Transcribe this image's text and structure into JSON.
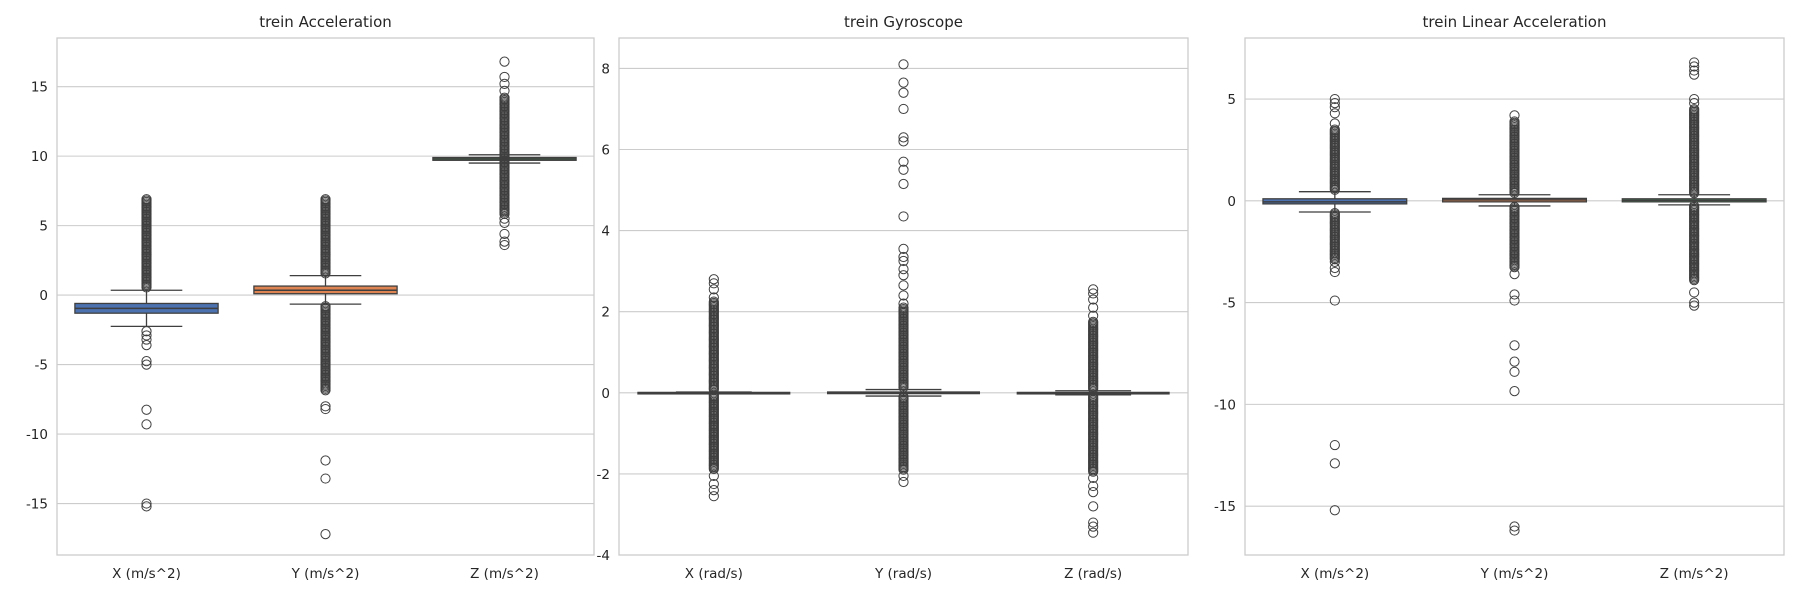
{
  "chart_data": [
    {
      "type": "box",
      "title": "trein Acceleration",
      "xlabel": "",
      "ylabel": "",
      "categories": [
        "X (m/s^2)",
        "Y (m/s^2)",
        "Z (m/s^2)"
      ],
      "ylim": [
        -18.7,
        18.5
      ],
      "yticks": [
        -15,
        -10,
        -5,
        0,
        5,
        10,
        15
      ],
      "grid": true,
      "colors": [
        "#4c72b0",
        "#dd8452",
        "#55a868"
      ],
      "boxes": [
        {
          "name": "X (m/s^2)",
          "whislo": -2.25,
          "q1": -1.3,
          "median": -0.95,
          "q3": -0.6,
          "whishi": 0.35,
          "fliers": [
            -15.2,
            -15.0,
            -9.3,
            -8.25,
            -5.0,
            -4.75,
            -3.6,
            -3.2,
            -2.9,
            -2.6
          ],
          "flier_bands": [
            [
              0.5,
              6.9
            ]
          ]
        },
        {
          "name": "Y (m/s^2)",
          "whislo": -0.65,
          "q1": 0.1,
          "median": 0.35,
          "q3": 0.65,
          "whishi": 1.4,
          "fliers": [
            -17.2,
            -13.2,
            -11.9,
            -8.2,
            -8.0
          ],
          "flier_bands": [
            [
              -6.9,
              -0.8
            ],
            [
              1.5,
              6.9
            ]
          ]
        },
        {
          "name": "Z (m/s^2)",
          "whislo": 9.5,
          "q1": 9.7,
          "median": 9.8,
          "q3": 9.9,
          "whishi": 10.1,
          "fliers": [
            16.8,
            15.7,
            15.2,
            14.7,
            3.6,
            3.85,
            4.4,
            5.2,
            5.5
          ],
          "flier_bands": [
            [
              5.8,
              14.2
            ]
          ]
        }
      ]
    },
    {
      "type": "box",
      "title": "trein Gyroscope",
      "xlabel": "",
      "ylabel": "",
      "categories": [
        "X (rad/s)",
        "Y (rad/s)",
        "Z (rad/s)"
      ],
      "ylim": [
        -4,
        8.75
      ],
      "yticks": [
        -4,
        -2,
        0,
        2,
        4,
        6,
        8
      ],
      "grid": true,
      "colors": [
        "#4c72b0",
        "#dd8452",
        "#55a868"
      ],
      "boxes": [
        {
          "name": "X (rad/s)",
          "whislo": -0.02,
          "q1": -0.01,
          "median": 0.0,
          "q3": 0.01,
          "whishi": 0.02,
          "fliers": [
            -2.55,
            -2.4,
            -2.25,
            -2.05,
            2.35,
            2.55,
            2.7,
            2.8
          ],
          "flier_bands": [
            [
              -1.9,
              -0.05
            ],
            [
              0.05,
              2.25
            ]
          ]
        },
        {
          "name": "Y (rad/s)",
          "whislo": -0.08,
          "q1": -0.02,
          "median": 0.0,
          "q3": 0.02,
          "whishi": 0.08,
          "fliers": [
            8.1,
            7.65,
            7.4,
            7.0,
            6.3,
            6.2,
            5.7,
            5.5,
            5.15,
            4.35,
            3.55,
            3.35,
            3.25,
            3.05,
            2.9,
            2.65,
            2.4,
            2.2,
            -2.05,
            -2.2
          ],
          "flier_bands": [
            [
              -1.9,
              -0.1
            ],
            [
              0.1,
              2.1
            ]
          ]
        },
        {
          "name": "Z (rad/s)",
          "whislo": -0.05,
          "q1": -0.01,
          "median": 0.0,
          "q3": 0.01,
          "whishi": 0.05,
          "fliers": [
            2.55,
            2.45,
            2.3,
            2.1,
            1.9,
            -2.1,
            -2.3,
            -2.45,
            -2.8,
            -3.2,
            -3.3,
            -3.45
          ],
          "flier_bands": [
            [
              -1.95,
              -0.08
            ],
            [
              0.08,
              1.75
            ]
          ]
        }
      ]
    },
    {
      "type": "box",
      "title": "trein Linear Acceleration",
      "xlabel": "",
      "ylabel": "",
      "categories": [
        "X (m/s^2)",
        "Y (m/s^2)",
        "Z (m/s^2)"
      ],
      "ylim": [
        -17.4,
        8.0
      ],
      "yticks": [
        -15,
        -10,
        -5,
        0,
        5
      ],
      "grid": true,
      "colors": [
        "#4c72b0",
        "#dd8452",
        "#55a868"
      ],
      "boxes": [
        {
          "name": "X (m/s^2)",
          "whislo": -0.55,
          "q1": -0.15,
          "median": -0.05,
          "q3": 0.1,
          "whishi": 0.45,
          "fliers": [
            -15.2,
            -12.9,
            -12.0,
            -4.9,
            -3.5,
            -3.3,
            -3.0,
            3.8,
            4.3,
            4.6,
            4.8,
            5.0
          ],
          "flier_bands": [
            [
              -2.9,
              -0.6
            ],
            [
              0.5,
              3.5
            ]
          ]
        },
        {
          "name": "Y (m/s^2)",
          "whislo": -0.25,
          "q1": -0.05,
          "median": 0.05,
          "q3": 0.12,
          "whishi": 0.3,
          "fliers": [
            -16.2,
            -16.0,
            -9.35,
            -8.4,
            -7.9,
            -7.1,
            -4.9,
            -4.6,
            -3.6,
            4.2
          ],
          "flier_bands": [
            [
              -3.3,
              -0.3
            ],
            [
              0.35,
              3.9
            ]
          ]
        },
        {
          "name": "Z (m/s^2)",
          "whislo": -0.2,
          "q1": -0.05,
          "median": 0.02,
          "q3": 0.1,
          "whishi": 0.3,
          "fliers": [
            -5.15,
            -5.0,
            -4.5,
            6.8,
            6.6,
            6.4,
            6.2,
            5.0,
            4.8
          ],
          "flier_bands": [
            [
              -3.9,
              -0.25
            ],
            [
              0.35,
              4.5
            ]
          ]
        }
      ]
    }
  ]
}
